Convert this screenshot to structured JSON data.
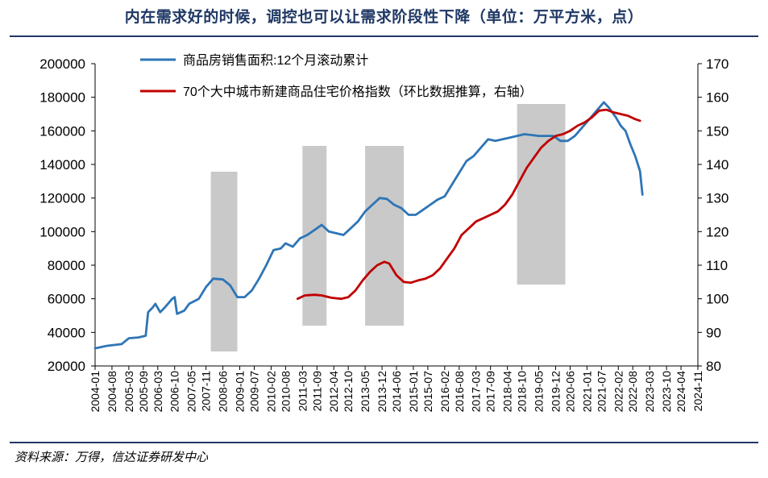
{
  "title": "内在需求好的时候，调控也可以让需求阶段性下降（单位：万平方米，点）",
  "source": "资料来源：万得，信达证券研发中心",
  "colors": {
    "blue": "#2e75b6",
    "red": "#c00000",
    "shade": "#c9c9c9",
    "axis": "#000000"
  },
  "chart_data": {
    "type": "line",
    "x_tick_labels": [
      "2004-01",
      "2004-08",
      "2005-03",
      "2005-09",
      "2006-03",
      "2006-10",
      "2007-05",
      "2007-11",
      "2008-06",
      "2009-01",
      "2009-07",
      "2010-02",
      "2010-08",
      "2011-03",
      "2011-09",
      "2012-04",
      "2012-10",
      "2013-05",
      "2013-12",
      "2014-06",
      "2015-01",
      "2015-07",
      "2016-02",
      "2016-08",
      "2017-03",
      "2017-09",
      "2018-04",
      "2018-10",
      "2019-05",
      "2019-12",
      "2020-06",
      "2021-01",
      "2021-07",
      "2022-02",
      "2022-08",
      "2023-03",
      "2023-10",
      "2024-04",
      "2024-11"
    ],
    "y_left": {
      "min": 20000,
      "max": 200000,
      "ticks": [
        20000,
        40000,
        60000,
        80000,
        100000,
        120000,
        140000,
        160000,
        180000,
        200000
      ]
    },
    "y_right": {
      "min": 80,
      "max": 170,
      "ticks": [
        80,
        90,
        100,
        110,
        120,
        130,
        140,
        150,
        160,
        170
      ]
    },
    "shaded_periods": [
      {
        "start": "2008-01",
        "end": "2008-12"
      },
      {
        "start": "2011-03",
        "end": "2012-01"
      },
      {
        "start": "2013-05",
        "end": "2014-09"
      },
      {
        "start": "2018-08",
        "end": "2020-04"
      }
    ],
    "series": [
      {
        "name": "商品房销售面积:12个月滚动累计",
        "axis": "left",
        "color": "#2e75b6",
        "points": [
          [
            "2004-01",
            30500
          ],
          [
            "2004-06",
            32000
          ],
          [
            "2004-12",
            33000
          ],
          [
            "2005-03",
            36500
          ],
          [
            "2005-07",
            37000
          ],
          [
            "2005-10",
            38000
          ],
          [
            "2005-11",
            52000
          ],
          [
            "2006-01",
            55000
          ],
          [
            "2006-02",
            57000
          ],
          [
            "2006-04",
            52000
          ],
          [
            "2006-06",
            55000
          ],
          [
            "2006-09",
            60000
          ],
          [
            "2006-10",
            61000
          ],
          [
            "2006-11",
            51000
          ],
          [
            "2007-02",
            53000
          ],
          [
            "2007-04",
            57000
          ],
          [
            "2007-08",
            60000
          ],
          [
            "2007-11",
            67000
          ],
          [
            "2008-02",
            72000
          ],
          [
            "2008-06",
            71500
          ],
          [
            "2008-09",
            68000
          ],
          [
            "2008-12",
            61000
          ],
          [
            "2009-03",
            61000
          ],
          [
            "2009-06",
            65000
          ],
          [
            "2009-09",
            72000
          ],
          [
            "2009-12",
            80000
          ],
          [
            "2010-03",
            89000
          ],
          [
            "2010-06",
            90000
          ],
          [
            "2010-08",
            93000
          ],
          [
            "2010-11",
            91000
          ],
          [
            "2011-02",
            96000
          ],
          [
            "2011-05",
            98000
          ],
          [
            "2011-08",
            101000
          ],
          [
            "2011-11",
            104000
          ],
          [
            "2012-02",
            100000
          ],
          [
            "2012-05",
            99000
          ],
          [
            "2012-08",
            98000
          ],
          [
            "2012-11",
            102000
          ],
          [
            "2013-02",
            106000
          ],
          [
            "2013-05",
            112000
          ],
          [
            "2013-08",
            116000
          ],
          [
            "2013-11",
            120000
          ],
          [
            "2014-02",
            119500
          ],
          [
            "2014-05",
            116000
          ],
          [
            "2014-08",
            114000
          ],
          [
            "2014-11",
            110000
          ],
          [
            "2015-02",
            110000
          ],
          [
            "2015-05",
            113000
          ],
          [
            "2015-08",
            116000
          ],
          [
            "2015-11",
            119000
          ],
          [
            "2016-02",
            121000
          ],
          [
            "2016-05",
            128000
          ],
          [
            "2016-08",
            135000
          ],
          [
            "2016-11",
            142000
          ],
          [
            "2017-02",
            145000
          ],
          [
            "2017-05",
            150000
          ],
          [
            "2017-08",
            155000
          ],
          [
            "2017-11",
            154000
          ],
          [
            "2018-02",
            155000
          ],
          [
            "2018-05",
            156000
          ],
          [
            "2018-08",
            157000
          ],
          [
            "2018-11",
            158000
          ],
          [
            "2019-02",
            157500
          ],
          [
            "2019-05",
            157000
          ],
          [
            "2019-08",
            157000
          ],
          [
            "2019-11",
            157000
          ],
          [
            "2020-02",
            154000
          ],
          [
            "2020-05",
            154000
          ],
          [
            "2020-08",
            157000
          ],
          [
            "2020-11",
            162000
          ],
          [
            "2021-02",
            167000
          ],
          [
            "2021-05",
            172000
          ],
          [
            "2021-08",
            177000
          ],
          [
            "2021-10",
            174000
          ],
          [
            "2022-01",
            168000
          ],
          [
            "2022-03",
            163000
          ],
          [
            "2022-05",
            160000
          ],
          [
            "2022-07",
            152000
          ],
          [
            "2022-09",
            145000
          ],
          [
            "2022-11",
            136000
          ],
          [
            "2022-12",
            122000
          ]
        ]
      },
      {
        "name": "70个大中城市新建商品住宅价格指数（环比数据推算，右轴）",
        "axis": "right",
        "color": "#c00000",
        "points": [
          [
            "2011-01",
            100
          ],
          [
            "2011-04",
            101
          ],
          [
            "2011-08",
            101.2
          ],
          [
            "2011-11",
            101
          ],
          [
            "2012-03",
            100.3
          ],
          [
            "2012-07",
            100
          ],
          [
            "2012-10",
            100.5
          ],
          [
            "2013-01",
            102.5
          ],
          [
            "2013-04",
            105.5
          ],
          [
            "2013-07",
            108
          ],
          [
            "2013-10",
            110
          ],
          [
            "2014-01",
            111
          ],
          [
            "2014-03",
            110.5
          ],
          [
            "2014-06",
            107
          ],
          [
            "2014-09",
            105
          ],
          [
            "2014-12",
            104.8
          ],
          [
            "2015-03",
            105.5
          ],
          [
            "2015-06",
            106
          ],
          [
            "2015-09",
            107
          ],
          [
            "2015-12",
            109
          ],
          [
            "2016-03",
            112
          ],
          [
            "2016-06",
            115
          ],
          [
            "2016-09",
            119
          ],
          [
            "2016-12",
            121
          ],
          [
            "2017-03",
            123
          ],
          [
            "2017-06",
            124
          ],
          [
            "2017-09",
            125
          ],
          [
            "2017-12",
            126
          ],
          [
            "2018-03",
            128
          ],
          [
            "2018-06",
            131
          ],
          [
            "2018-09",
            135
          ],
          [
            "2018-12",
            139
          ],
          [
            "2019-03",
            142
          ],
          [
            "2019-06",
            145
          ],
          [
            "2019-09",
            147
          ],
          [
            "2019-12",
            148.5
          ],
          [
            "2020-03",
            149
          ],
          [
            "2020-06",
            150
          ],
          [
            "2020-09",
            151.5
          ],
          [
            "2020-12",
            152.5
          ],
          [
            "2021-03",
            154
          ],
          [
            "2021-06",
            156
          ],
          [
            "2021-09",
            156.3
          ],
          [
            "2021-12",
            155.5
          ],
          [
            "2022-03",
            155
          ],
          [
            "2022-06",
            154.5
          ],
          [
            "2022-09",
            153.5
          ],
          [
            "2022-11",
            153
          ]
        ]
      }
    ],
    "legend": "top-left"
  }
}
